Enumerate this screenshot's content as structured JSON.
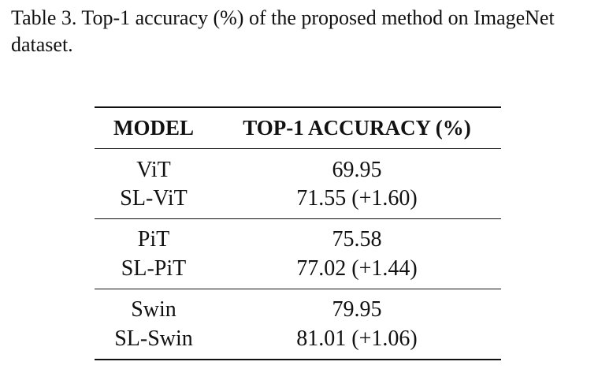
{
  "caption": "Table 3. Top-1 accuracy (%) of the proposed method on ImageNet dataset.",
  "table": {
    "headers": [
      "MODEL",
      "TOP-1 ACCURACY (%)"
    ],
    "groups": [
      {
        "rows": [
          {
            "model": "ViT",
            "accuracy": "69.95"
          },
          {
            "model": "SL-ViT",
            "accuracy": "71.55 (+1.60)"
          }
        ]
      },
      {
        "rows": [
          {
            "model": "PiT",
            "accuracy": "75.58"
          },
          {
            "model": "SL-PiT",
            "accuracy": "77.02 (+1.44)"
          }
        ]
      },
      {
        "rows": [
          {
            "model": "Swin",
            "accuracy": "79.95"
          },
          {
            "model": "SL-Swin",
            "accuracy": "81.01 (+1.06)"
          }
        ]
      }
    ]
  }
}
